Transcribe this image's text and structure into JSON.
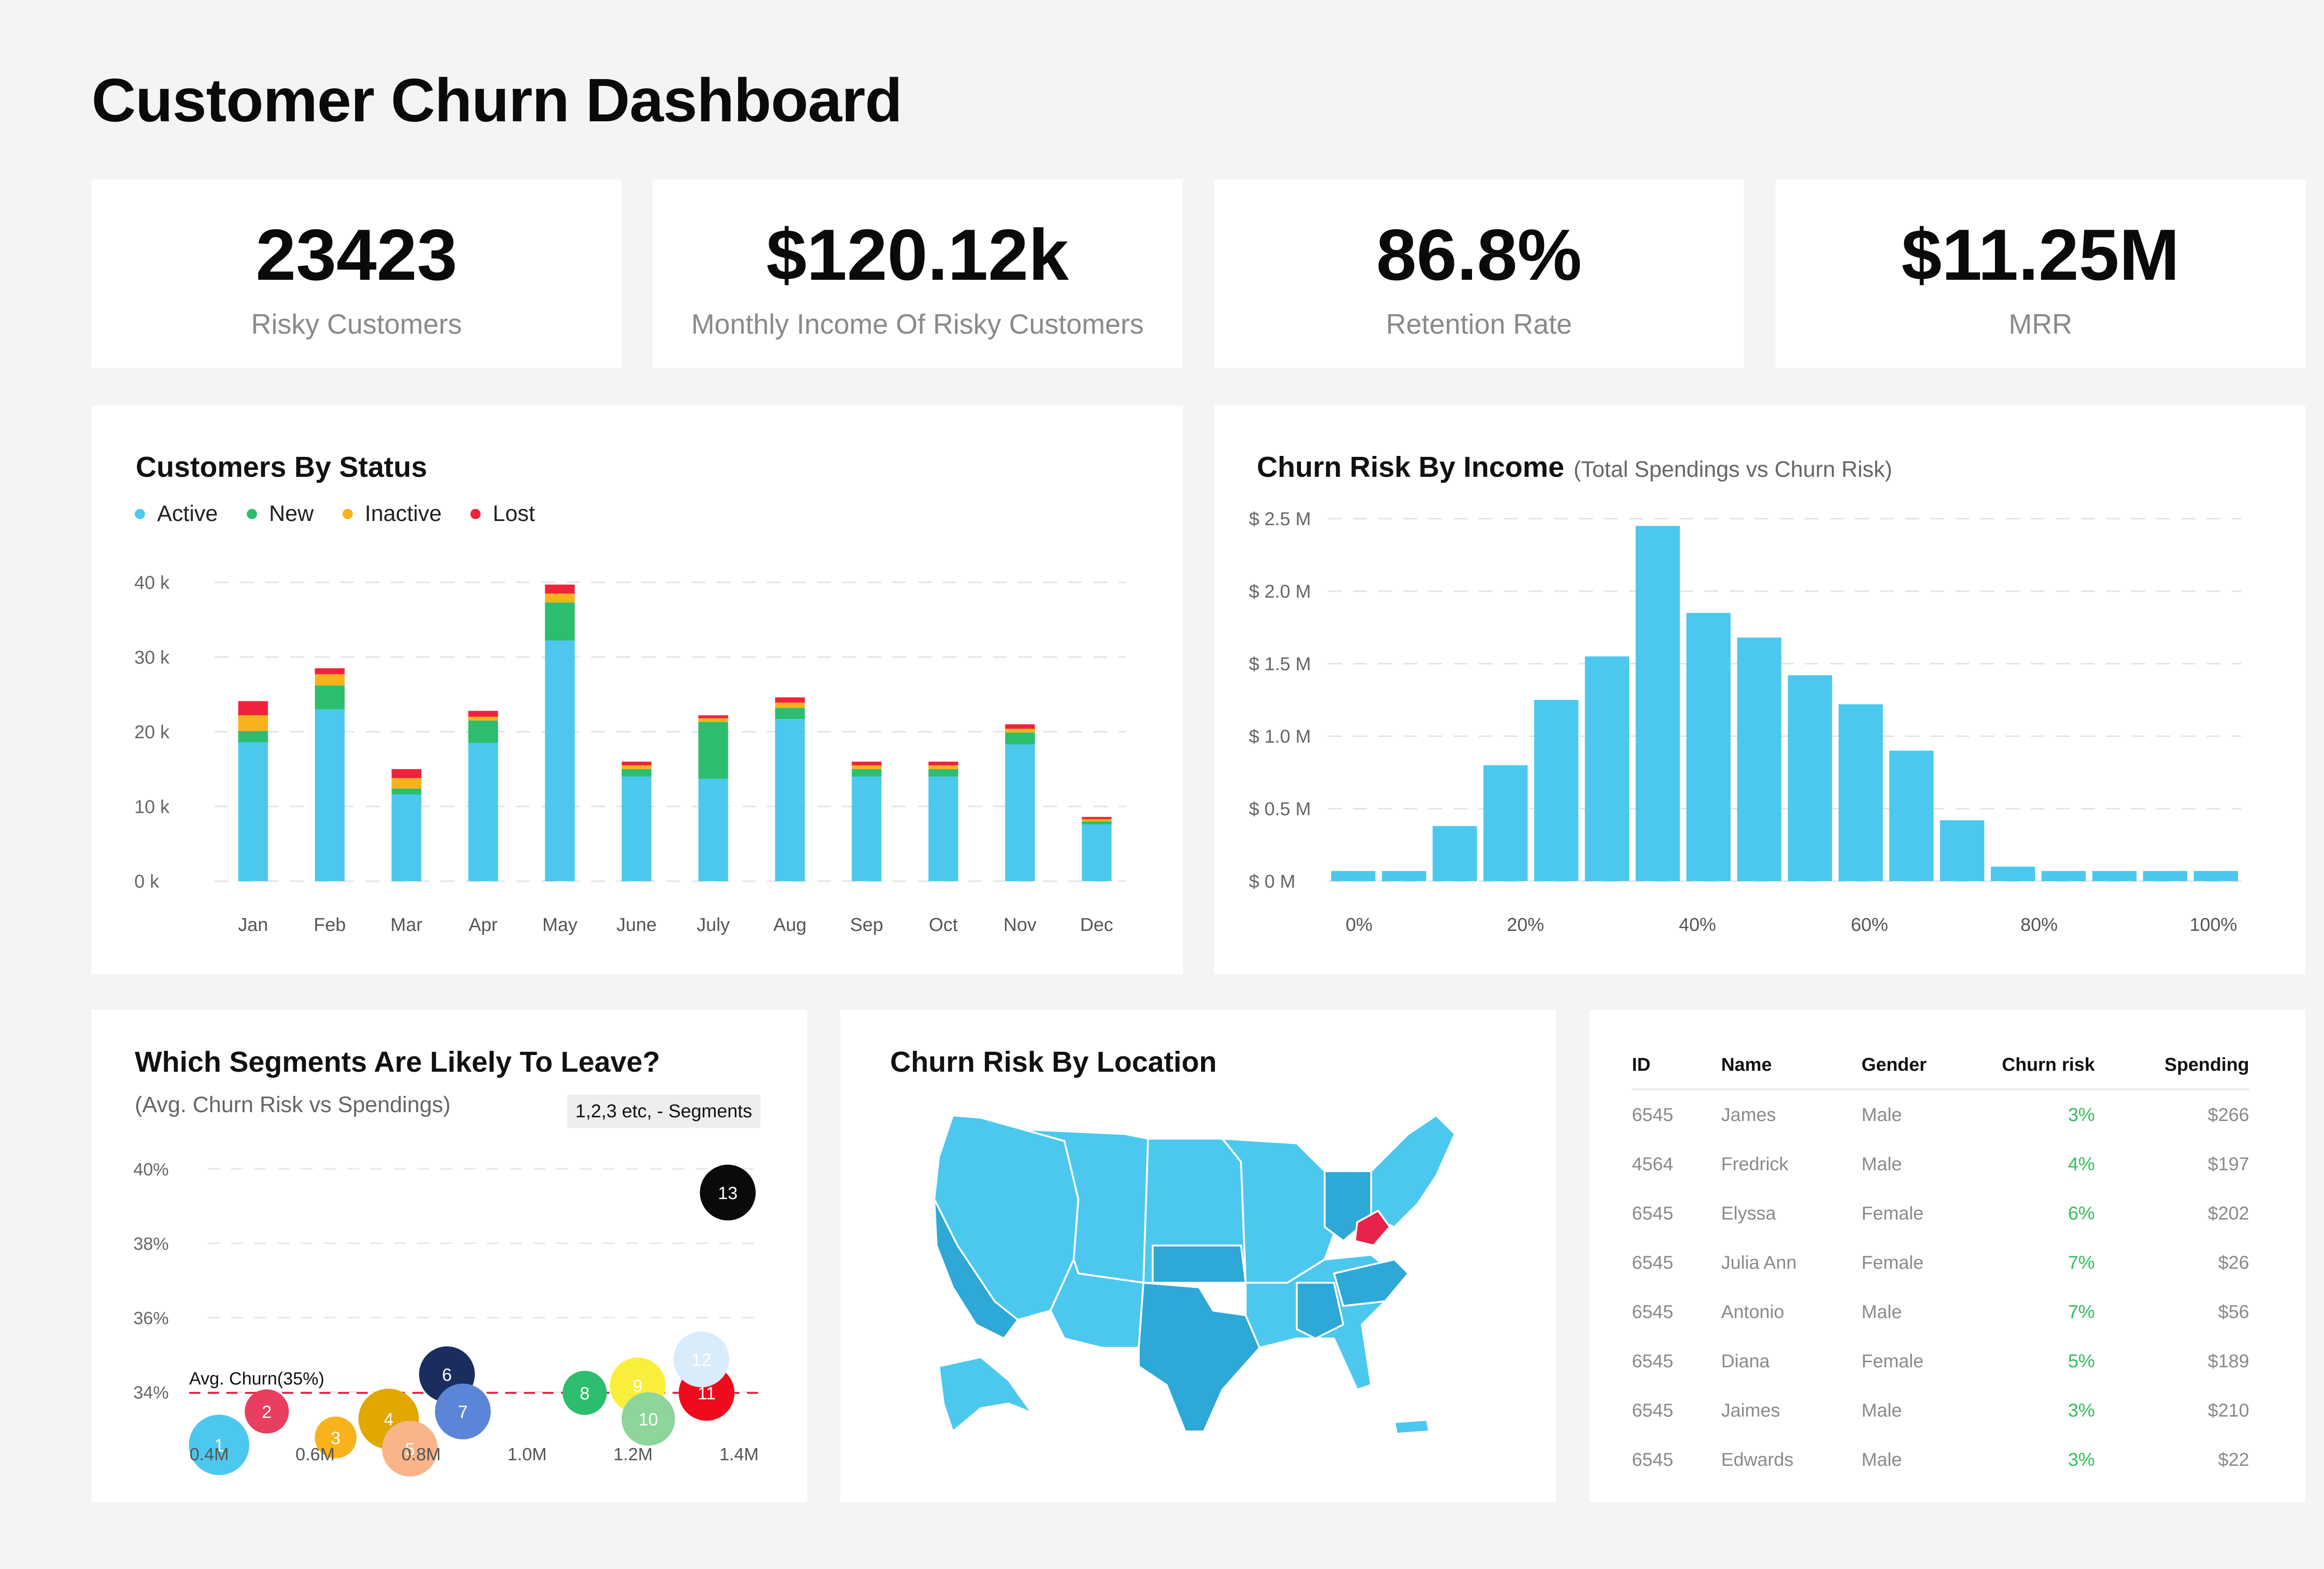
{
  "title": "Customer Churn Dashboard",
  "kpis": [
    {
      "value": "23423",
      "label": "Risky Customers"
    },
    {
      "value": "$120.12k",
      "label": "Monthly Income Of Risky Customers"
    },
    {
      "value": "86.8%",
      "label": "Retention Rate"
    },
    {
      "value": "$11.25M",
      "label": "MRR"
    }
  ],
  "colors": {
    "active": "#4cc8ef",
    "new": "#2dbd6e",
    "inactive": "#f8b21b",
    "lost": "#f0233d",
    "bar": "#4cc8ef",
    "map": "#4cc8ef",
    "map_dark": "#2ea8d6",
    "highlight": "#e8224a"
  },
  "chart_data": [
    {
      "type": "bar",
      "stacked": true,
      "title": "Customers By Status",
      "categories": [
        "Jan",
        "Feb",
        "Mar",
        "Apr",
        "May",
        "June",
        "July",
        "Aug",
        "Sep",
        "Oct",
        "Nov",
        "Dec"
      ],
      "series": [
        {
          "name": "Active",
          "color": "#4cc8ef",
          "values": [
            18600,
            23000,
            11600,
            18500,
            32200,
            14000,
            13700,
            21700,
            14000,
            14000,
            18300,
            7600
          ]
        },
        {
          "name": "New",
          "color": "#2dbd6e",
          "values": [
            1500,
            3200,
            800,
            3000,
            5100,
            1000,
            7600,
            1500,
            1000,
            1000,
            1600,
            400
          ]
        },
        {
          "name": "Inactive",
          "color": "#f8b21b",
          "values": [
            2100,
            1500,
            1400,
            500,
            1200,
            500,
            500,
            700,
            500,
            500,
            500,
            300
          ]
        },
        {
          "name": "Lost",
          "color": "#f0233d",
          "values": [
            1900,
            800,
            1200,
            800,
            1200,
            500,
            400,
            700,
            500,
            500,
            600,
            300
          ]
        }
      ],
      "yticks": [
        "0 k",
        "10 k",
        "20 k",
        "30 k",
        "40 k"
      ],
      "ylim": [
        0,
        40000
      ],
      "grid": true,
      "legend": "top-left"
    },
    {
      "type": "bar",
      "title": "Churn Risk By Income",
      "subtitle": "(Total Spendings vs Churn Risk)",
      "values": [
        0.07,
        0.07,
        0.38,
        0.8,
        1.25,
        1.55,
        2.45,
        1.85,
        1.68,
        1.42,
        1.22,
        0.9,
        0.42,
        0.1,
        0.07,
        0.07,
        0.07,
        0.07
      ],
      "unit": "$M",
      "yticks": [
        "$ 0 M",
        "$ 0.5 M",
        "$ 1.0 M",
        "$ 1.5 M",
        "$ 2.0 M",
        "$ 2.5 M"
      ],
      "xticks": [
        "0%",
        "20%",
        "40%",
        "60%",
        "80%",
        "100%"
      ],
      "ylim": [
        0,
        2.5
      ],
      "grid": true
    },
    {
      "type": "scatter",
      "title": "Which Segments Are Likely To Leave?",
      "subtitle": "(Avg. Churn Risk vs Spendings)",
      "legend_note": "1,2,3 etc, - Segments",
      "xticks": [
        "0.4M",
        "0.6M",
        "0.8M",
        "1.0M",
        "1.2M",
        "1.4M"
      ],
      "yticks": [
        "34%",
        "36%",
        "38%",
        "40%"
      ],
      "xlim": [
        0.4,
        1.4
      ],
      "ylim": [
        34,
        40
      ],
      "reference_line": {
        "value": 35,
        "label": "Avg. Churn(35%)"
      },
      "points": [
        {
          "label": "1",
          "x": 0.41,
          "y": 33.6,
          "r": 1.3,
          "color": "#4cc8ef"
        },
        {
          "label": "2",
          "x": 0.5,
          "y": 34.5,
          "r": 0.95,
          "color": "#e83e5f"
        },
        {
          "label": "3",
          "x": 0.63,
          "y": 33.8,
          "r": 0.9,
          "color": "#f8b21b"
        },
        {
          "label": "4",
          "x": 0.73,
          "y": 34.3,
          "r": 1.3,
          "color": "#e0a800"
        },
        {
          "label": "5",
          "x": 0.77,
          "y": 33.5,
          "r": 1.2,
          "color": "#f9b48a"
        },
        {
          "label": "6",
          "x": 0.84,
          "y": 35.5,
          "r": 1.2,
          "color": "#1b2d5e"
        },
        {
          "label": "7",
          "x": 0.87,
          "y": 34.5,
          "r": 1.2,
          "color": "#5b85d6"
        },
        {
          "label": "8",
          "x": 1.1,
          "y": 35.0,
          "r": 0.95,
          "color": "#2dbd6e"
        },
        {
          "label": "9",
          "x": 1.2,
          "y": 35.2,
          "r": 1.2,
          "color": "#f9ef3b"
        },
        {
          "label": "10",
          "x": 1.22,
          "y": 34.3,
          "r": 1.15,
          "color": "#8dd59a"
        },
        {
          "label": "11",
          "x": 1.33,
          "y": 35.0,
          "r": 1.2,
          "color": "#f00a1e"
        },
        {
          "label": "12",
          "x": 1.32,
          "y": 35.9,
          "r": 1.2,
          "color": "#d9ecfb"
        },
        {
          "label": "13",
          "x": 1.37,
          "y": 40.2,
          "r": 1.2,
          "color": "#0a0a0a"
        }
      ]
    }
  ],
  "map": {
    "title": "Churn Risk By Location"
  },
  "table": {
    "headers": [
      "ID",
      "Name",
      "Gender",
      "Churn risk",
      "Spending"
    ],
    "rows": [
      [
        "6545",
        "James",
        "Male",
        "3%",
        "$266"
      ],
      [
        "4564",
        "Fredrick",
        "Male",
        "4%",
        "$197"
      ],
      [
        "6545",
        "Elyssa",
        "Female",
        "6%",
        "$202"
      ],
      [
        "6545",
        "Julia Ann",
        "Female",
        "7%",
        "$26"
      ],
      [
        "6545",
        "Antonio",
        "Male",
        "7%",
        "$56"
      ],
      [
        "6545",
        "Diana",
        "Female",
        "5%",
        "$189"
      ],
      [
        "6545",
        "Jaimes",
        "Male",
        "3%",
        "$210"
      ],
      [
        "6545",
        "Edwards",
        "Male",
        "3%",
        "$22"
      ]
    ]
  }
}
